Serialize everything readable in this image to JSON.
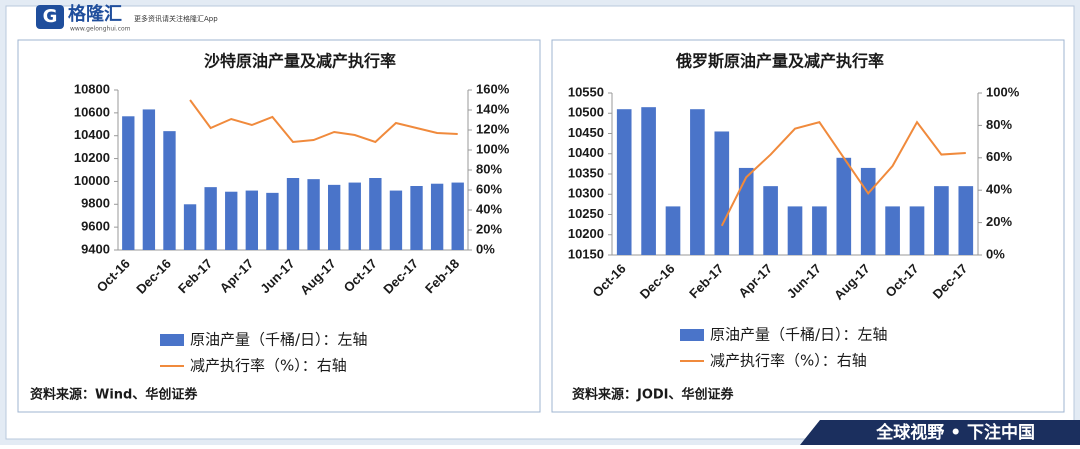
{
  "header": {
    "brand": "格隆汇",
    "url": "www.gelonghui.com",
    "slogan": "更多资讯请关注格隆汇App"
  },
  "chart_data": [
    {
      "type": "bar",
      "title": "沙特原油产量及减产执行率",
      "categories": [
        "Oct-16",
        null,
        "Dec-16",
        null,
        "Feb-17",
        null,
        "Apr-17",
        null,
        "Jun-17",
        null,
        "Aug-17",
        null,
        "Oct-17",
        null,
        "Dec-17",
        null,
        "Feb-18"
      ],
      "series": [
        {
          "name": "原油产量（千桶/日）：左轴",
          "type": "bar",
          "color": "#4a74c9",
          "values": [
            10570,
            10630,
            10440,
            9800,
            9950,
            9910,
            9920,
            9900,
            10030,
            10020,
            9970,
            9990,
            10030,
            9920,
            9960,
            9980,
            9990
          ]
        },
        {
          "name": "减产执行率（%）：右轴",
          "type": "line",
          "axis": "y2",
          "color": "#f08a3c",
          "values": [
            null,
            null,
            null,
            150,
            122,
            131,
            125,
            133,
            108,
            110,
            118,
            115,
            108,
            127,
            122,
            117,
            116
          ]
        }
      ],
      "ylim": [
        9400,
        10800
      ],
      "yticks": [
        9400,
        9600,
        9800,
        10000,
        10200,
        10400,
        10600,
        10800
      ],
      "y2lim": [
        0,
        160
      ],
      "y2ticks": [
        {
          "value": 0,
          "label": "0%"
        },
        {
          "value": 20,
          "label": "20%"
        },
        {
          "value": 40,
          "label": "40%"
        },
        {
          "value": 60,
          "label": "60%"
        },
        {
          "value": 80,
          "label": "80%"
        },
        {
          "value": 100,
          "label": "100%"
        },
        {
          "value": 120,
          "label": "120%"
        },
        {
          "value": 140,
          "label": "140%"
        },
        {
          "value": 160,
          "label": "160%"
        }
      ],
      "source": "资料来源：Wind、华创证券"
    },
    {
      "type": "bar",
      "title": "俄罗斯原油产量及减产执行率",
      "categories": [
        "Oct-16",
        null,
        "Dec-16",
        null,
        "Feb-17",
        null,
        "Apr-17",
        null,
        "Jun-17",
        null,
        "Aug-17",
        null,
        "Oct-17",
        null,
        "Dec-17"
      ],
      "series": [
        {
          "name": "原油产量（千桶/日）：左轴",
          "type": "bar",
          "color": "#4a74c9",
          "values": [
            10510,
            10515,
            10270,
            10510,
            10455,
            10365,
            10320,
            10270,
            10270,
            10390,
            10365,
            10270,
            10270,
            10320,
            10320
          ]
        },
        {
          "name": "减产执行率（%）：右轴",
          "type": "line",
          "axis": "y2",
          "color": "#f08a3c",
          "values": [
            null,
            null,
            null,
            null,
            18,
            48,
            62,
            78,
            82,
            60,
            38,
            55,
            82,
            62,
            63
          ]
        }
      ],
      "ylim": [
        10150,
        10550
      ],
      "yticks": [
        10150,
        10200,
        10250,
        10300,
        10350,
        10400,
        10450,
        10500,
        10550
      ],
      "y2lim": [
        0,
        100
      ],
      "y2ticks": [
        {
          "value": 0,
          "label": "0%"
        },
        {
          "value": 20,
          "label": "20%"
        },
        {
          "value": 40,
          "label": "40%"
        },
        {
          "value": 60,
          "label": "60%"
        },
        {
          "value": 80,
          "label": "80%"
        },
        {
          "value": 100,
          "label": "100%"
        }
      ],
      "source": "资料来源：JODI、华创证券"
    }
  ],
  "footer": "全球视野 • 下注中国"
}
